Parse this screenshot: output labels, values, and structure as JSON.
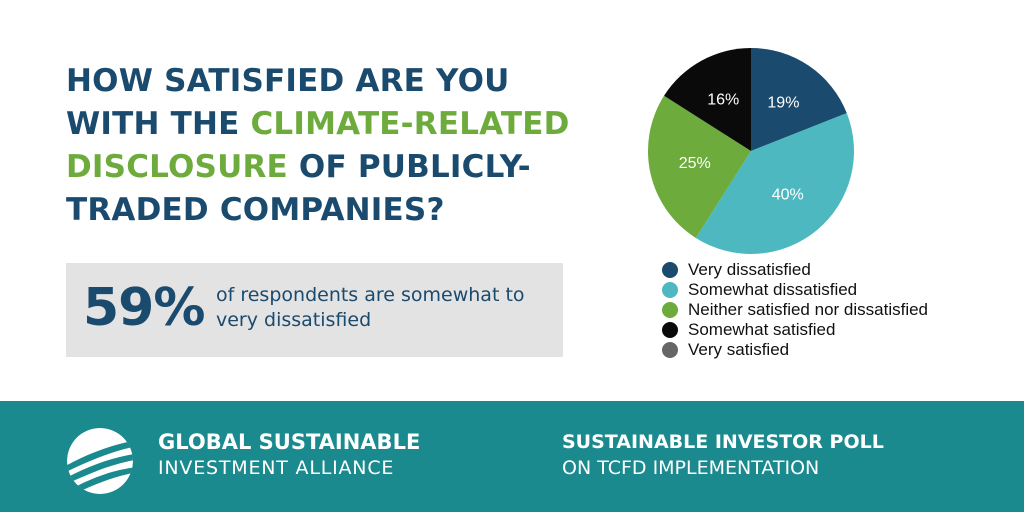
{
  "headline": {
    "part1": "HOW SATISFIED ARE YOU",
    "part2": "WITH THE ",
    "accent1": "CLIMATE-RELATED",
    "accent2": "DISCLOSURE",
    "part3": " OF PUBLICLY-",
    "part4": "TRADED COMPANIES?"
  },
  "stat": {
    "value": "59%",
    "text": "of respondents are somewhat to very dissatisfied"
  },
  "footer": {
    "org_line1": "GLOBAL SUSTAINABLE",
    "org_line2": "INVESTMENT ALLIANCE",
    "poll_line1": "SUSTAINABLE INVESTOR POLL",
    "poll_line2": "ON TCFD IMPLEMENTATION"
  },
  "colors": {
    "headline": "#1a4a6e",
    "accent": "#6cab3c",
    "footer_bg": "#1a8a8e",
    "stat_bg": "#e3e3e3"
  },
  "icons": {
    "logo": "globe-swoosh-icon"
  },
  "chart_data": {
    "type": "pie",
    "title": "",
    "legend_position": "bottom",
    "series": [
      {
        "name": "Very dissatisfied",
        "value": 19,
        "label": "19%",
        "color": "#1a4a6e",
        "label_color": "#ffffff"
      },
      {
        "name": "Somewhat dissatisfied",
        "value": 40,
        "label": "40%",
        "color": "#4db8c0",
        "label_color": "#ffffff"
      },
      {
        "name": "Neither satisfied nor dissatisfied",
        "value": 25,
        "label": "25%",
        "color": "#6cab3c",
        "label_color": "#ffffff"
      },
      {
        "name": "Somewhat satisfied",
        "value": 16,
        "label": "16%",
        "color": "#0a0a0a",
        "label_color": "#ffffff"
      },
      {
        "name": "Very satisfied",
        "value": 0,
        "label": "",
        "color": "#666666",
        "label_color": "#ffffff"
      }
    ]
  }
}
